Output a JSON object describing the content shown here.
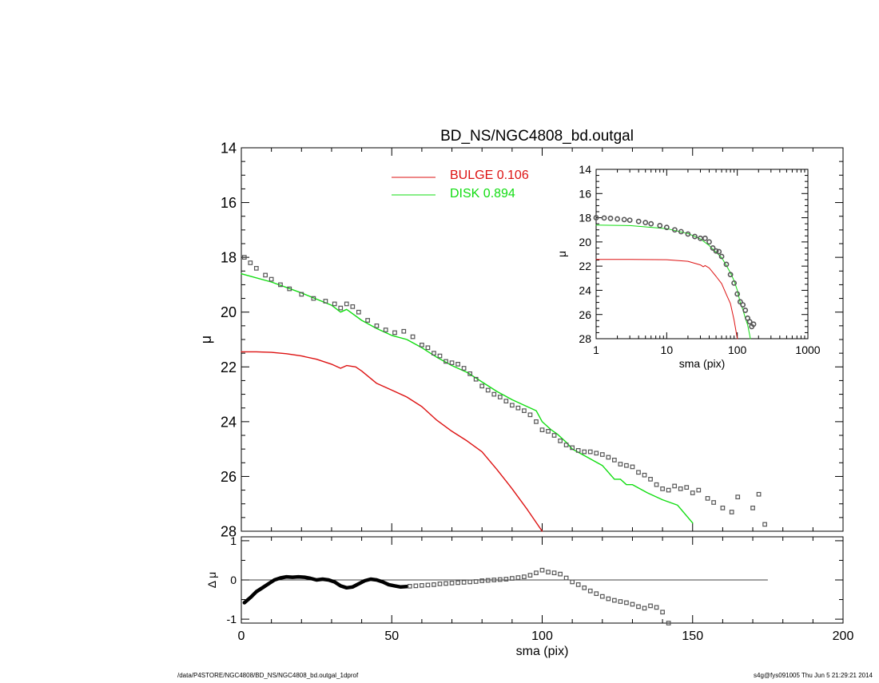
{
  "title": "BD_NS/NGC4808_bd.outgal",
  "legend": {
    "bulge_label": "BULGE  0.106",
    "disk_label": "DISK  0.894",
    "placement": "top-center"
  },
  "footer": {
    "left": "/data/P4STORE/NGC4808/BD_NS/NGC4808_bd.outgal_1dprof",
    "right": "s4g@fys091005  Thu Jun  5 21:29:21 2014"
  },
  "colors": {
    "bulge": "#dd1111",
    "disk": "#11dd11",
    "points": "#555555",
    "axis": "#000000"
  },
  "chart_data": [
    {
      "id": "main",
      "type": "line",
      "xlabel": "",
      "ylabel": "μ",
      "xlim": [
        0,
        200
      ],
      "ylim": [
        28,
        14
      ],
      "y_inverted": true,
      "xticks": [
        0,
        50,
        100,
        150,
        200
      ],
      "yticks": [
        14,
        16,
        18,
        20,
        22,
        24,
        26,
        28
      ],
      "series": [
        {
          "name": "BULGE  0.106",
          "color": "#dd1111",
          "x": [
            0,
            5,
            10,
            15,
            20,
            25,
            30,
            33,
            35,
            38,
            40,
            45,
            50,
            55,
            60,
            65,
            70,
            75,
            80,
            85,
            90,
            95,
            100
          ],
          "y": [
            21.45,
            21.45,
            21.47,
            21.52,
            21.6,
            21.72,
            21.9,
            22.05,
            21.95,
            22.0,
            22.15,
            22.6,
            22.85,
            23.1,
            23.45,
            23.95,
            24.35,
            24.7,
            25.1,
            25.75,
            26.45,
            27.2,
            28.1
          ]
        },
        {
          "name": "DISK  0.894",
          "color": "#11dd11",
          "x": [
            0,
            10,
            20,
            30,
            33,
            35,
            40,
            45,
            50,
            55,
            60,
            65,
            70,
            75,
            80,
            85,
            90,
            95,
            98,
            100,
            103,
            105,
            108,
            110,
            115,
            120,
            124,
            126,
            128,
            130,
            135,
            140,
            145,
            150,
            153
          ],
          "y": [
            18.6,
            18.9,
            19.3,
            19.75,
            20.0,
            19.9,
            20.3,
            20.6,
            20.85,
            21.0,
            21.3,
            21.65,
            21.95,
            22.2,
            22.55,
            22.9,
            23.2,
            23.45,
            23.6,
            24.0,
            24.3,
            24.45,
            24.75,
            25.0,
            25.3,
            25.6,
            26.1,
            26.1,
            26.3,
            26.3,
            26.6,
            26.85,
            27.05,
            27.7,
            28.2
          ]
        },
        {
          "name": "",
          "color": "#555555",
          "markers": "square",
          "x": [
            1,
            3,
            5,
            8,
            10,
            13,
            16,
            20,
            24,
            28,
            31,
            33,
            35,
            37,
            39,
            42,
            45,
            48,
            51,
            54,
            57,
            60,
            62,
            64,
            66,
            68,
            70,
            72,
            74,
            76,
            78,
            80,
            82,
            84,
            86,
            88,
            90,
            92,
            94,
            96,
            98,
            100,
            102,
            104,
            106,
            108,
            110,
            112,
            114,
            116,
            118,
            120,
            122,
            124,
            126,
            128,
            130,
            132,
            134,
            136,
            138,
            140,
            142,
            144,
            146,
            148,
            150,
            152,
            155,
            157,
            160,
            163,
            165,
            170,
            172,
            174
          ],
          "y": [
            18.0,
            18.2,
            18.4,
            18.65,
            18.8,
            19.0,
            19.15,
            19.35,
            19.5,
            19.6,
            19.7,
            19.85,
            19.7,
            19.8,
            20.0,
            20.3,
            20.5,
            20.65,
            20.75,
            20.7,
            20.9,
            21.2,
            21.3,
            21.5,
            21.6,
            21.8,
            21.85,
            21.9,
            22.05,
            22.25,
            22.45,
            22.7,
            22.85,
            23.0,
            23.1,
            23.25,
            23.4,
            23.5,
            23.6,
            23.75,
            24.0,
            24.3,
            24.35,
            24.5,
            24.7,
            24.85,
            24.95,
            25.05,
            25.1,
            25.1,
            25.15,
            25.2,
            25.3,
            25.4,
            25.55,
            25.6,
            25.65,
            25.85,
            25.95,
            26.1,
            26.3,
            26.45,
            26.5,
            26.35,
            26.45,
            26.4,
            26.6,
            26.5,
            26.8,
            26.95,
            27.15,
            27.3,
            26.75,
            27.15,
            26.65,
            27.75
          ]
        }
      ]
    },
    {
      "id": "residual",
      "type": "scatter",
      "xlabel": "sma (pix)",
      "ylabel": "Δ μ",
      "xlim": [
        0,
        200
      ],
      "ylim": [
        -1.1,
        1.1
      ],
      "xticks": [
        0,
        50,
        100,
        150,
        200
      ],
      "xticklabels": [
        "0",
        "50",
        "100",
        "150",
        "200"
      ],
      "yticks": [
        -1,
        0,
        1
      ],
      "zero_line": {
        "x": [
          0,
          175
        ],
        "y": 0
      },
      "series": [
        {
          "name": "",
          "color": "#000000",
          "type": "line",
          "x": [
            1,
            3,
            5,
            7,
            9,
            11,
            13,
            15,
            17,
            19,
            21,
            23,
            25,
            27,
            29,
            31,
            33,
            35,
            37,
            39,
            41,
            43,
            45,
            47,
            49,
            51,
            53,
            55
          ],
          "y": [
            -0.58,
            -0.45,
            -0.3,
            -0.2,
            -0.1,
            0.0,
            0.05,
            0.08,
            0.07,
            0.08,
            0.07,
            0.04,
            0.0,
            0.02,
            0.0,
            -0.05,
            -0.15,
            -0.2,
            -0.18,
            -0.1,
            -0.02,
            0.02,
            0.0,
            -0.05,
            -0.12,
            -0.15,
            -0.18,
            -0.17
          ]
        },
        {
          "name": "",
          "color": "#555555",
          "markers": "square",
          "x": [
            56,
            58,
            60,
            62,
            64,
            66,
            68,
            70,
            72,
            74,
            76,
            78,
            80,
            82,
            84,
            86,
            88,
            90,
            92,
            94,
            96,
            98,
            100,
            102,
            104,
            106,
            108,
            110,
            112,
            114,
            116,
            118,
            120,
            122,
            124,
            126,
            128,
            130,
            132,
            134,
            136,
            138,
            140,
            142
          ],
          "y": [
            -0.16,
            -0.15,
            -0.14,
            -0.13,
            -0.12,
            -0.1,
            -0.09,
            -0.08,
            -0.07,
            -0.06,
            -0.05,
            -0.04,
            -0.02,
            -0.01,
            0.0,
            0.01,
            0.02,
            0.04,
            0.06,
            0.08,
            0.12,
            0.18,
            0.25,
            0.2,
            0.18,
            0.15,
            0.05,
            -0.05,
            -0.12,
            -0.2,
            -0.28,
            -0.35,
            -0.42,
            -0.48,
            -0.52,
            -0.55,
            -0.58,
            -0.62,
            -0.68,
            -0.72,
            -0.66,
            -0.7,
            -0.82,
            -1.1
          ]
        }
      ]
    },
    {
      "id": "inset",
      "type": "line",
      "xlabel": "sma (pix)",
      "ylabel": "μ",
      "xscale": "log",
      "xlim": [
        1,
        1000
      ],
      "ylim": [
        28,
        14
      ],
      "y_inverted": true,
      "xticks": [
        1,
        10,
        100,
        1000
      ],
      "xticklabels": [
        "1",
        "10",
        "100",
        "1000"
      ],
      "yticks": [
        14,
        16,
        18,
        20,
        22,
        24,
        26,
        28
      ],
      "series": [
        {
          "name": "BULGE  0.106",
          "color": "#dd1111",
          "x": [
            1,
            3,
            10,
            20,
            30,
            33,
            35,
            40,
            50,
            60,
            70,
            80,
            90,
            100
          ],
          "y": [
            21.45,
            21.45,
            21.47,
            21.6,
            21.9,
            22.05,
            21.95,
            22.15,
            22.85,
            23.45,
            24.35,
            25.1,
            26.45,
            28.1
          ]
        },
        {
          "name": "DISK  0.894",
          "color": "#11dd11",
          "x": [
            1,
            3,
            10,
            20,
            30,
            40,
            50,
            60,
            70,
            80,
            90,
            100,
            110,
            120,
            130,
            140,
            150,
            153
          ],
          "y": [
            18.6,
            18.65,
            18.9,
            19.3,
            19.75,
            20.3,
            20.85,
            21.3,
            21.95,
            22.55,
            23.2,
            24.0,
            25.0,
            25.6,
            26.3,
            26.85,
            27.7,
            28.2
          ]
        },
        {
          "name": "",
          "color": "#555555",
          "markers": "circle",
          "x": [
            1,
            1.3,
            1.6,
            2,
            2.5,
            3,
            4,
            5,
            6,
            8,
            10,
            13,
            16,
            20,
            25,
            30,
            35,
            40,
            45,
            50,
            55,
            60,
            70,
            80,
            90,
            100,
            110,
            120,
            130,
            140,
            150,
            160,
            170
          ],
          "y": [
            18.0,
            18.02,
            18.05,
            18.1,
            18.15,
            18.2,
            18.3,
            18.4,
            18.5,
            18.65,
            18.8,
            19.0,
            19.15,
            19.35,
            19.55,
            19.7,
            19.7,
            20.0,
            20.5,
            20.75,
            20.8,
            21.2,
            21.85,
            22.7,
            23.4,
            24.3,
            24.95,
            25.2,
            25.65,
            26.3,
            26.6,
            27.0,
            26.8
          ]
        }
      ]
    }
  ]
}
